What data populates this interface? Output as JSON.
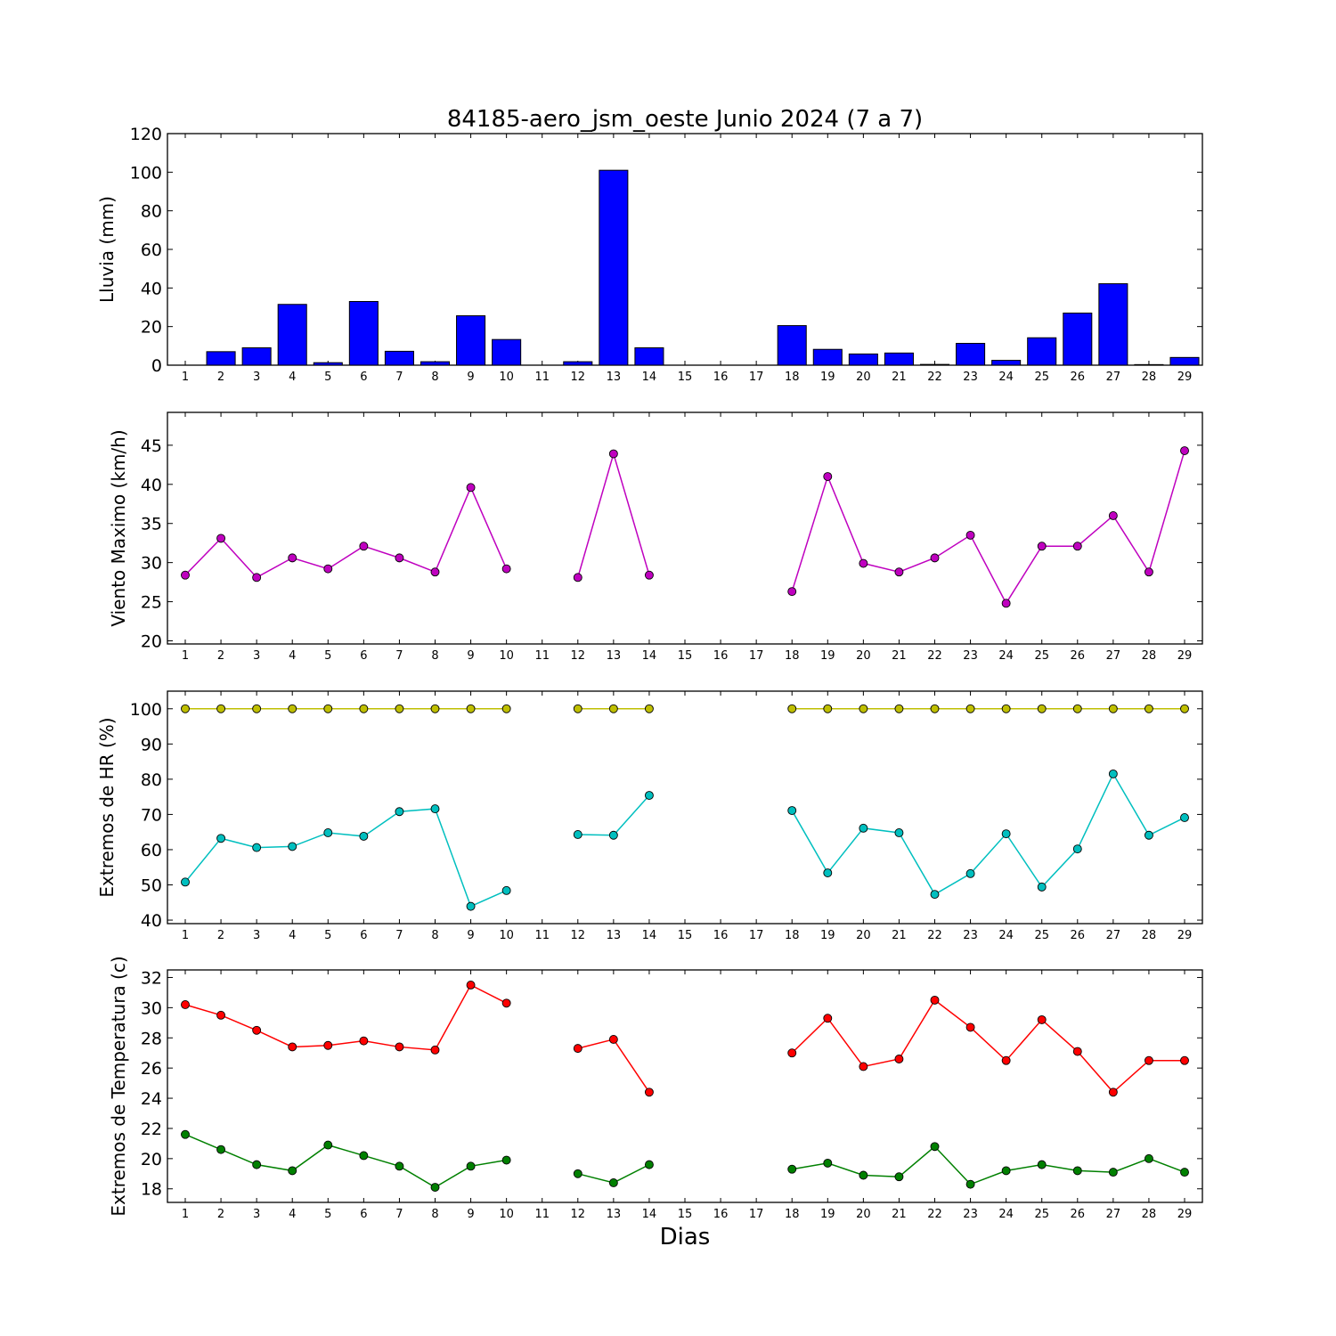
{
  "chart_data": {
    "title": "84185-aero_jsm_oeste Junio 2024  (7 a 7)",
    "xlabel": "Dias",
    "x": [
      1,
      2,
      3,
      4,
      5,
      6,
      7,
      8,
      9,
      10,
      11,
      12,
      13,
      14,
      15,
      16,
      17,
      18,
      19,
      20,
      21,
      22,
      23,
      24,
      25,
      26,
      27,
      28,
      29
    ],
    "panels": [
      {
        "type": "bar",
        "ylabel": "Lluvia (mm)",
        "ylim": [
          0,
          120
        ],
        "yticks": [
          0,
          20,
          40,
          60,
          80,
          100,
          120
        ],
        "series": [
          {
            "color": "#0000ff",
            "values": [
              0,
              7,
              9,
              31.5,
              1.3,
              33,
              7.2,
              1.8,
              25.6,
              13.3,
              null,
              1.8,
              101,
              9,
              null,
              null,
              null,
              20.5,
              8.2,
              5.8,
              6.3,
              0.4,
              11.3,
              2.5,
              14.2,
              27,
              42.2,
              0.3,
              4
            ]
          }
        ]
      },
      {
        "type": "line",
        "ylabel": "Viento Maximo (km/h)",
        "ylim": [
          19.6,
          49.2
        ],
        "yticks": [
          20,
          25,
          30,
          35,
          40,
          45
        ],
        "series": [
          {
            "color": "#bf00bf",
            "values": [
              28.4,
              33.1,
              28.1,
              30.6,
              29.2,
              32.1,
              30.6,
              28.8,
              39.6,
              29.2,
              null,
              28.1,
              43.9,
              28.4,
              null,
              null,
              null,
              26.3,
              41.0,
              29.9,
              28.8,
              30.6,
              33.5,
              24.8,
              32.1,
              32.1,
              36.0,
              28.8,
              44.3
            ]
          }
        ]
      },
      {
        "type": "line",
        "ylabel": "Extremos de HR (%)",
        "ylim": [
          39,
          105
        ],
        "yticks": [
          40,
          50,
          60,
          70,
          80,
          90,
          100
        ],
        "series": [
          {
            "color": "#bfbf00",
            "values": [
              100,
              100,
              100,
              100,
              100,
              100,
              100,
              100,
              100,
              100,
              null,
              100,
              100,
              100,
              null,
              null,
              null,
              100,
              100,
              100,
              100,
              100,
              100,
              100,
              100,
              100,
              100,
              100,
              100
            ]
          },
          {
            "color": "#00bfbf",
            "values": [
              50.8,
              63.2,
              60.6,
              60.9,
              64.8,
              63.8,
              70.8,
              71.6,
              43.9,
              48.4,
              null,
              64.3,
              64.1,
              75.4,
              null,
              null,
              null,
              71.1,
              53.4,
              66.1,
              64.8,
              47.3,
              53.2,
              64.5,
              49.4,
              60.2,
              81.5,
              64.1,
              69.1
            ]
          }
        ]
      },
      {
        "type": "line",
        "ylabel": "Extremos de Temperatura (c)",
        "ylim": [
          17.1,
          32.5
        ],
        "yticks": [
          18,
          20,
          22,
          24,
          26,
          28,
          30,
          32
        ],
        "series": [
          {
            "color": "#ff0000",
            "values": [
              30.2,
              29.5,
              28.5,
              27.4,
              27.5,
              27.8,
              27.4,
              27.2,
              31.5,
              30.3,
              null,
              27.3,
              27.9,
              24.4,
              null,
              null,
              null,
              27.0,
              29.3,
              26.1,
              26.6,
              30.5,
              28.7,
              26.5,
              29.2,
              27.1,
              24.4,
              26.5,
              26.5
            ]
          },
          {
            "color": "#008000",
            "values": [
              21.6,
              20.6,
              19.6,
              19.2,
              20.9,
              20.2,
              19.5,
              18.1,
              19.5,
              19.9,
              null,
              19.0,
              18.4,
              19.6,
              null,
              null,
              null,
              19.3,
              19.7,
              18.9,
              18.8,
              20.8,
              18.3,
              19.2,
              19.6,
              19.2,
              19.1,
              20.0,
              19.1
            ]
          }
        ]
      }
    ]
  }
}
